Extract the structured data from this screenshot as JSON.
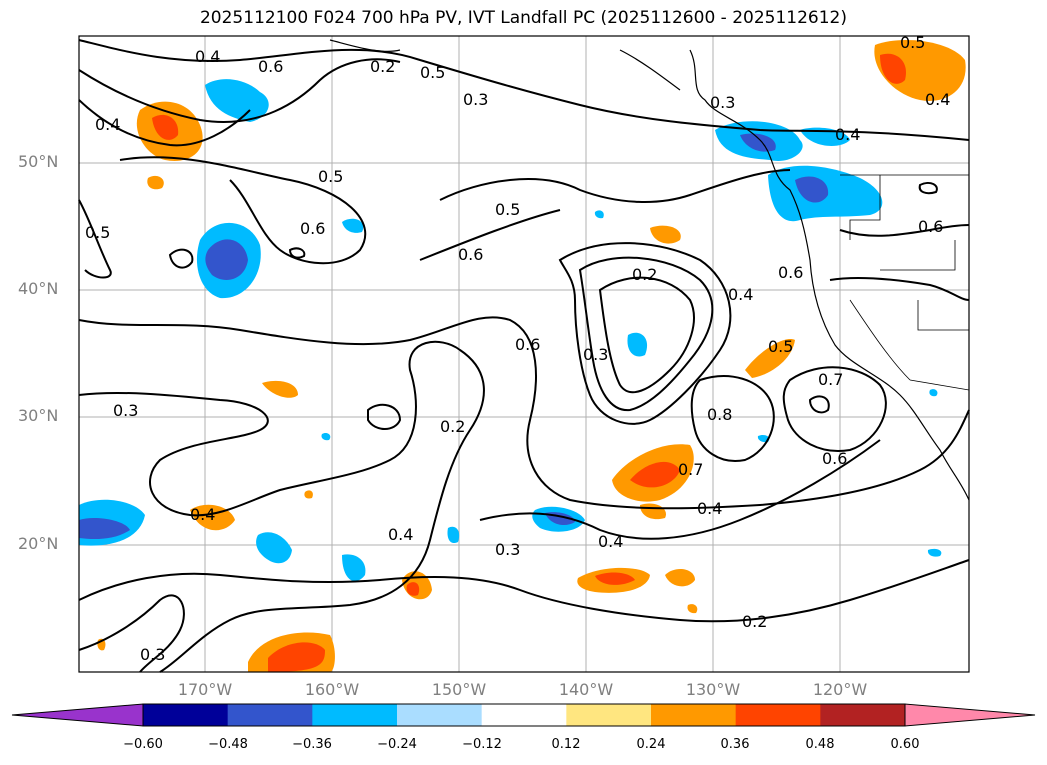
{
  "title": "2025112100 F024 700 hPa PV, IVT Landfall PC (2025112600 - 2025112612)",
  "lat_labels": [
    "50°N",
    "40°N",
    "30°N",
    "20°N"
  ],
  "lon_labels": [
    "170°W",
    "160°W",
    "150°W",
    "140°W",
    "130°W",
    "120°W"
  ],
  "colorbar": {
    "ticks": [
      "−0.60",
      "−0.48",
      "−0.36",
      "−0.24",
      "−0.12",
      "0.12",
      "0.24",
      "0.36",
      "0.48",
      "0.60"
    ],
    "colors": [
      "#9933cc",
      "#000099",
      "#3355cc",
      "#00bbff",
      "#aaddff",
      "#ffffff",
      "#ffe680",
      "#ff9900",
      "#ff4400",
      "#b22222",
      "#ff88aa"
    ]
  },
  "contour_labels": [
    "0.6",
    "0.5",
    "0.3",
    "0.4",
    "0.5",
    "0.6",
    "0.5",
    "0.6",
    "0.2",
    "0.4",
    "0.3",
    "0.6",
    "0.5",
    "0.7",
    "0.8",
    "0.7",
    "0.6",
    "0.4",
    "0.4",
    "0.3",
    "0.2",
    "0.4",
    "0.3",
    "0.4",
    "0.3",
    "0.2",
    "0.4",
    "0.5",
    "0.6",
    "0.4",
    "0.6",
    "0.5",
    "0.3",
    "0.4",
    "0.2"
  ]
}
